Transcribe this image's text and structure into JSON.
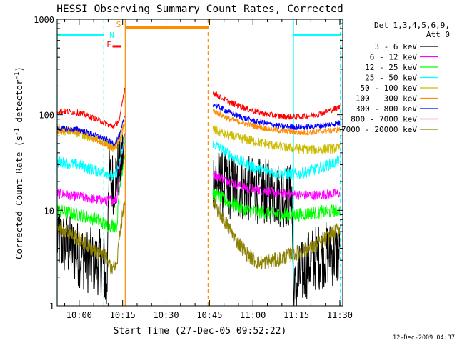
{
  "chart_data": {
    "type": "line",
    "title": "HESSI Observing Summary Count Rates, Corrected",
    "xlabel": "Start Time (27-Dec-05 09:52:22)",
    "ylabel_main": "Corrected Count Rate (s",
    "ylabel_sup1": "-1",
    "ylabel_mid": " detector",
    "ylabel_sup2": "-1",
    "ylabel_end": ")",
    "yscale": "log",
    "ylim": [
      1,
      1000
    ],
    "xlim_min": [
      592.4,
      691
    ],
    "x_unit": "minutes after 00:00 on 27-Dec-05",
    "x_ticks": [
      {
        "v": 600,
        "label": "10:00"
      },
      {
        "v": 615,
        "label": "10:15"
      },
      {
        "v": 630,
        "label": "10:30"
      },
      {
        "v": 645,
        "label": "10:45"
      },
      {
        "v": 660,
        "label": "11:00"
      },
      {
        "v": 675,
        "label": "11:15"
      },
      {
        "v": 690,
        "label": "11:30"
      }
    ],
    "y_ticks": [
      {
        "v": 1,
        "label": "1"
      },
      {
        "v": 10,
        "label": "10"
      },
      {
        "v": 100,
        "label": "100"
      },
      {
        "v": 1000,
        "label": "1000"
      }
    ],
    "legend_header_1": "Det 1,3,4,5,6,9,",
    "legend_header_2": "Att 0",
    "legend_position": "right",
    "data_gap_min": [
      615.8,
      646.2
    ],
    "series": [
      {
        "name": "3 - 6 keV",
        "color": "#000000",
        "noise": 0.35,
        "points": [
          [
            592.4,
            5
          ],
          [
            597,
            4
          ],
          [
            603,
            3
          ],
          [
            608.5,
            2.8
          ],
          [
            609.6,
            1.2
          ],
          [
            610,
            20
          ],
          [
            612,
            20
          ],
          [
            614,
            30
          ],
          [
            615.8,
            45
          ],
          [
            646.2,
            22
          ],
          [
            650,
            18
          ],
          [
            656,
            17
          ],
          [
            662,
            16
          ],
          [
            668,
            15
          ],
          [
            673.5,
            14
          ],
          [
            674,
            1.2
          ],
          [
            676,
            2
          ],
          [
            680,
            3
          ],
          [
            685,
            3.5
          ],
          [
            690,
            3.5
          ]
        ]
      },
      {
        "name": "6 - 12 keV",
        "color": "#ff00ff",
        "noise": 0.05,
        "points": [
          [
            592.4,
            15
          ],
          [
            600,
            14
          ],
          [
            606,
            13
          ],
          [
            609.5,
            12.5
          ],
          [
            610,
            13
          ],
          [
            613,
            13
          ],
          [
            614,
            30
          ],
          [
            615.8,
            60
          ],
          [
            646.2,
            24
          ],
          [
            652,
            20
          ],
          [
            658,
            17
          ],
          [
            664,
            16
          ],
          [
            670,
            15
          ],
          [
            676,
            14.5
          ],
          [
            682,
            14.5
          ],
          [
            690,
            15
          ]
        ]
      },
      {
        "name": "12 - 25 keV",
        "color": "#00ff00",
        "noise": 0.07,
        "points": [
          [
            592.4,
            10
          ],
          [
            600,
            9
          ],
          [
            606,
            8
          ],
          [
            609.5,
            7
          ],
          [
            610,
            7
          ],
          [
            613,
            7
          ],
          [
            614,
            18
          ],
          [
            615.8,
            40
          ],
          [
            646.2,
            15
          ],
          [
            652,
            12
          ],
          [
            658,
            10
          ],
          [
            664,
            9.5
          ],
          [
            670,
            9
          ],
          [
            676,
            9
          ],
          [
            682,
            9.5
          ],
          [
            690,
            10
          ]
        ]
      },
      {
        "name": "25 - 50 keV",
        "color": "#00ffff",
        "noise": 0.06,
        "points": [
          [
            592.4,
            32
          ],
          [
            596,
            31
          ],
          [
            600,
            30
          ],
          [
            604,
            27
          ],
          [
            609.5,
            25
          ],
          [
            612,
            22
          ],
          [
            614,
            30
          ],
          [
            615.8,
            60
          ],
          [
            646.2,
            50
          ],
          [
            652,
            38
          ],
          [
            658,
            30
          ],
          [
            664,
            26
          ],
          [
            670,
            24
          ],
          [
            676,
            24
          ],
          [
            682,
            27
          ],
          [
            690,
            33
          ]
        ]
      },
      {
        "name": "50 - 100 keV",
        "color": "#ccbb00",
        "noise": 0.05,
        "points": [
          [
            592.4,
            70
          ],
          [
            600,
            65
          ],
          [
            606,
            55
          ],
          [
            609.5,
            50
          ],
          [
            612,
            45
          ],
          [
            614,
            52
          ],
          [
            615.8,
            80
          ],
          [
            646.2,
            70
          ],
          [
            652,
            60
          ],
          [
            658,
            55
          ],
          [
            664,
            50
          ],
          [
            670,
            46
          ],
          [
            676,
            44
          ],
          [
            682,
            43
          ],
          [
            690,
            45
          ]
        ]
      },
      {
        "name": "100 - 300 keV",
        "color": "#ff8c00",
        "noise": 0.03,
        "points": [
          [
            592.4,
            68
          ],
          [
            600,
            67
          ],
          [
            606,
            55
          ],
          [
            609.5,
            48
          ],
          [
            612,
            44
          ],
          [
            614,
            55
          ],
          [
            615.8,
            90
          ],
          [
            646.2,
            110
          ],
          [
            652,
            90
          ],
          [
            658,
            80
          ],
          [
            664,
            72
          ],
          [
            670,
            68
          ],
          [
            676,
            65
          ],
          [
            682,
            66
          ],
          [
            690,
            70
          ]
        ]
      },
      {
        "name": "300 - 800 keV",
        "color": "#0000ff",
        "noise": 0.03,
        "points": [
          [
            592.4,
            72
          ],
          [
            600,
            70
          ],
          [
            606,
            60
          ],
          [
            609.5,
            55
          ],
          [
            612,
            50
          ],
          [
            614,
            60
          ],
          [
            615.8,
            100
          ],
          [
            646.2,
            130
          ],
          [
            652,
            105
          ],
          [
            658,
            90
          ],
          [
            664,
            82
          ],
          [
            670,
            76
          ],
          [
            676,
            74
          ],
          [
            682,
            76
          ],
          [
            690,
            82
          ]
        ]
      },
      {
        "name": "800 - 7000 keV",
        "color": "#ff0000",
        "noise": 0.03,
        "points": [
          [
            592.4,
            110
          ],
          [
            600,
            105
          ],
          [
            606,
            90
          ],
          [
            609.5,
            80
          ],
          [
            612,
            75
          ],
          [
            614,
            90
          ],
          [
            615.8,
            200
          ],
          [
            646.2,
            170
          ],
          [
            652,
            135
          ],
          [
            658,
            115
          ],
          [
            664,
            102
          ],
          [
            670,
            96
          ],
          [
            676,
            95
          ],
          [
            682,
            100
          ],
          [
            690,
            120
          ]
        ]
      },
      {
        "name": "7000 - 20000 keV",
        "color": "#8b8000",
        "noise": 0.08,
        "points": [
          [
            592.4,
            7
          ],
          [
            596,
            6
          ],
          [
            600,
            5
          ],
          [
            604,
            4
          ],
          [
            609.5,
            3.2
          ],
          [
            610,
            2.6
          ],
          [
            613,
            2.6
          ],
          [
            614,
            6
          ],
          [
            615.8,
            12
          ],
          [
            646.2,
            12
          ],
          [
            650,
            8
          ],
          [
            654,
            5
          ],
          [
            658,
            3.5
          ],
          [
            662,
            2.8
          ],
          [
            668,
            3
          ],
          [
            674,
            3.5
          ],
          [
            680,
            4
          ],
          [
            685,
            5
          ],
          [
            690,
            6.5
          ]
        ]
      }
    ],
    "annotations": [
      {
        "type": "hline",
        "color": "#00ffff",
        "label": "",
        "x0": 592.4,
        "x1": 608.5,
        "y": 680
      },
      {
        "type": "hline",
        "color": "#00ffff",
        "label": "",
        "x0": 674,
        "x1": 690.2,
        "y": 680
      },
      {
        "type": "hline",
        "color": "#ff8c00",
        "label": "",
        "x0": 615.9,
        "x1": 644.5,
        "y": 820
      },
      {
        "type": "hline",
        "color": "#ff0000",
        "label": "",
        "x0": 611.5,
        "x1": 614.5,
        "y": 520
      },
      {
        "type": "letter",
        "color": "#ff0000",
        "label": "F",
        "x": 610.3,
        "y": 510
      },
      {
        "type": "letter",
        "color": "#00ffff",
        "label": "N",
        "x": 611.3,
        "y": 640
      },
      {
        "type": "letter",
        "color": "#ff8c00",
        "label": "S",
        "x": 613.6,
        "y": 830
      },
      {
        "type": "vline",
        "color": "#00ffff",
        "dash": false,
        "x": 592.4
      },
      {
        "type": "vline",
        "color": "#00ffff",
        "dash": true,
        "x": 608.5
      },
      {
        "type": "vline",
        "color": "#ff8c00",
        "dash": false,
        "x": 615.9
      },
      {
        "type": "vline",
        "color": "#ff8c00",
        "dash": true,
        "x": 644.5
      },
      {
        "type": "vline",
        "color": "#00ffff",
        "dash": false,
        "x": 674
      },
      {
        "type": "vline",
        "color": "#00ffff",
        "dash": true,
        "x": 690.2
      }
    ]
  },
  "footer_date": "12-Dec-2009 04:37"
}
